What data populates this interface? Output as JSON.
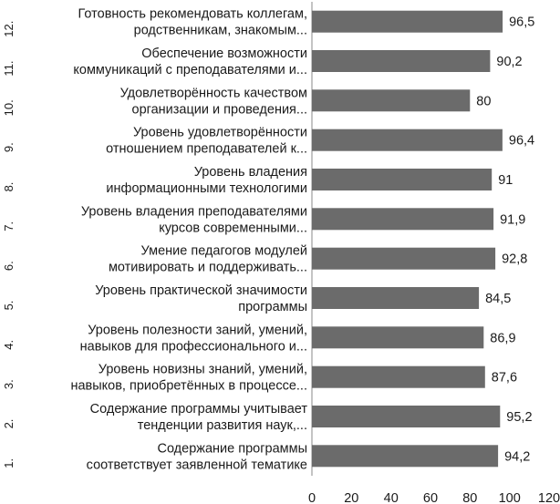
{
  "chart_data": {
    "type": "bar",
    "orientation": "horizontal",
    "title": "",
    "xlabel": "",
    "ylabel": "",
    "xlim": [
      0,
      120
    ],
    "x_ticks": [
      0,
      20,
      40,
      60,
      80,
      100,
      120
    ],
    "grid": false,
    "legend": "none",
    "bar_color": "#6b6b6b",
    "categories": [
      {
        "num": "1.",
        "lines": [
          "Содержание программы",
          "соответствует заявленной тематике"
        ]
      },
      {
        "num": "2.",
        "lines": [
          "Содержание программы учитывает",
          "тенденции развития наук,..."
        ]
      },
      {
        "num": "3.",
        "lines": [
          "Уровень новизны знаний, умений,",
          "навыков, приобретённых в процессе..."
        ]
      },
      {
        "num": "4.",
        "lines": [
          "Уровень полезности заний, умений,",
          "навыков для профессионального и..."
        ]
      },
      {
        "num": "5.",
        "lines": [
          "Уровень практической значимости",
          "программы"
        ]
      },
      {
        "num": "6.",
        "lines": [
          "Умение педагогов модулей",
          "мотивировать и поддерживать..."
        ]
      },
      {
        "num": "7.",
        "lines": [
          "Уровень владения преподавателями",
          "курсов  современными..."
        ]
      },
      {
        "num": "8.",
        "lines": [
          "Уровень владения",
          "информационными технологими"
        ]
      },
      {
        "num": "9.",
        "lines": [
          "Уровень удовлетворённости",
          "отношением преподавателей к..."
        ]
      },
      {
        "num": "10.",
        "lines": [
          "Удовлетворённость качеством",
          "организации и проведения..."
        ]
      },
      {
        "num": "11.",
        "lines": [
          "Обеспечение возможности",
          "коммуникаций с преподавателями и..."
        ]
      },
      {
        "num": "12.",
        "lines": [
          "Готовность рекомендовать коллегам,",
          "родственникам, знакомым..."
        ]
      }
    ],
    "values": [
      94.2,
      95.2,
      87.6,
      86.9,
      84.5,
      92.8,
      91.9,
      91,
      96.4,
      80,
      90.2,
      96.5
    ],
    "value_labels": [
      "94,2",
      "95,2",
      "87,6",
      "86,9",
      "84,5",
      "92,8",
      "91,9",
      "91",
      "96,4",
      "80",
      "90,2",
      "96,5"
    ],
    "tick_labels": [
      "0",
      "20",
      "40",
      "60",
      "80",
      "100",
      "120"
    ]
  }
}
